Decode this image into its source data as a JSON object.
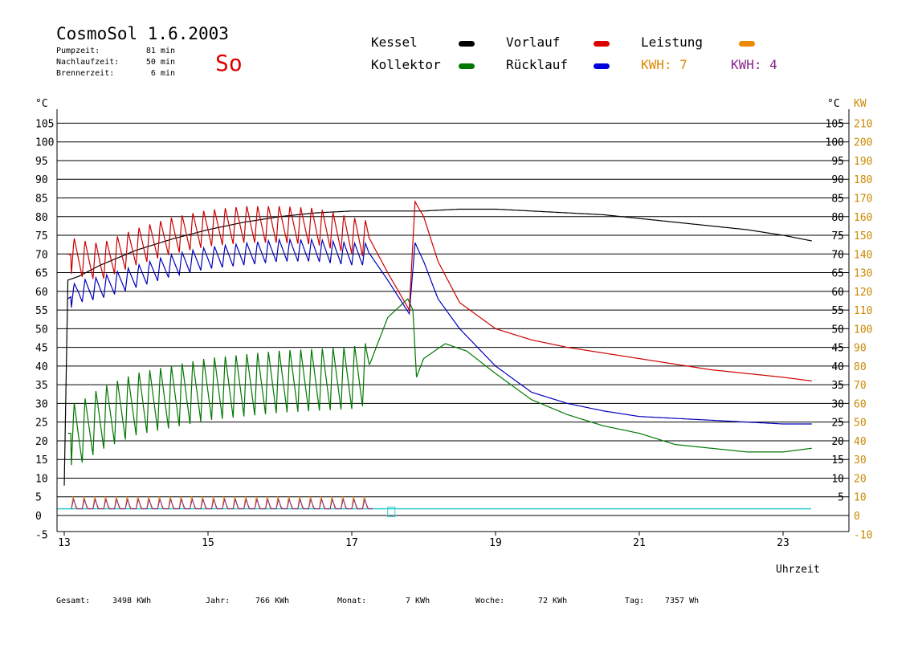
{
  "header": {
    "title": "CosmoSol 1.6.2003",
    "day": "So",
    "pumpzeit_label": "Pumpzeit:",
    "pumpzeit_value": "81 min",
    "nachlauf_label": "Nachlaufzeit:",
    "nachlauf_value": "50 min",
    "brenner_label": "Brennerzeit:",
    "brenner_value": "6 min"
  },
  "legend": {
    "kessel": "Kessel",
    "kollektor": "Kollektor",
    "vorlauf": "Vorlauf",
    "ruecklauf": "Rücklauf",
    "leistung": "Leistung",
    "kwh_orange": "KWH: 7",
    "kwh_purple": "KWH: 4"
  },
  "footer": {
    "gesamt_label": "Gesamt:",
    "gesamt_value": "3498 KWh",
    "jahr_label": "Jahr:",
    "jahr_value": "766 KWh",
    "monat_label": "Monat:",
    "monat_value": "7 KWh",
    "woche_label": "Woche:",
    "woche_value": "72 KWh",
    "tag_label": "Tag:",
    "tag_value": "7357 Wh"
  },
  "colors": {
    "kessel": "#000000",
    "kollektor": "#007700",
    "vorlauf": "#cc0000",
    "ruecklauf": "#0000bb",
    "leistung": "#ee8800",
    "kwh2": "#882288",
    "zero_line": "#33cccc",
    "axis_orange": "#cc8800"
  },
  "chart_data": {
    "type": "line",
    "title": "CosmoSol 1.6.2003",
    "xlabel": "Uhrzeit",
    "ylabel": "°C",
    "ylabel_right": "KW",
    "xlim": [
      12.9,
      23.9
    ],
    "ylim": [
      -5,
      108
    ],
    "y2lim": [
      -10,
      216
    ],
    "grid": true,
    "xticks": [
      13,
      15,
      17,
      19,
      21,
      23
    ],
    "yticks_left": [
      -5,
      0,
      5,
      10,
      15,
      20,
      25,
      30,
      35,
      40,
      45,
      50,
      55,
      60,
      65,
      70,
      75,
      80,
      85,
      90,
      95,
      100,
      105
    ],
    "yticks_right": [
      5,
      10,
      15,
      20,
      25,
      30,
      35,
      40,
      45,
      50,
      55,
      60,
      65,
      70,
      75,
      80,
      85,
      90,
      95,
      100,
      105
    ],
    "yticks_kw": [
      -10,
      0,
      10,
      20,
      30,
      40,
      50,
      60,
      70,
      80,
      90,
      100,
      110,
      120,
      130,
      140,
      150,
      160,
      170,
      180,
      190,
      200,
      210
    ],
    "series": [
      {
        "name": "Kessel",
        "color": "#000000",
        "x": [
          13.0,
          13.05,
          13.2,
          13.5,
          14.0,
          14.5,
          15.0,
          15.5,
          16.0,
          16.5,
          17.0,
          17.5,
          18.0,
          18.5,
          19.0,
          19.5,
          20.0,
          20.5,
          21.0,
          21.5,
          22.0,
          22.5,
          23.0,
          23.4
        ],
        "y": [
          8,
          63,
          64,
          67,
          71,
          74,
          76.5,
          78.5,
          80,
          81,
          81.5,
          81.5,
          81.5,
          82,
          82,
          81.5,
          81,
          80.5,
          79.5,
          78.5,
          77.5,
          76.5,
          75,
          73.5
        ]
      },
      {
        "name": "Vorlauf",
        "color": "#cc0000",
        "x": [
          13.05,
          13.2,
          13.5,
          14.0,
          14.5,
          15.0,
          15.5,
          16.0,
          16.5,
          17.0,
          17.25,
          17.5,
          17.8,
          17.88,
          18.0,
          18.2,
          18.5,
          19.0,
          19.5,
          20.0,
          20.5,
          21.0,
          21.5,
          22.0,
          22.5,
          23.0,
          23.4
        ],
        "y": [
          70,
          69,
          68,
          72,
          75,
          77,
          78,
          78,
          77.5,
          75,
          74,
          65,
          55,
          84,
          80,
          68,
          57,
          50,
          47,
          45,
          43.5,
          42,
          40.5,
          39,
          38,
          37,
          36
        ],
        "amplitude": 10
      },
      {
        "name": "Rücklauf",
        "color": "#0000bb",
        "x": [
          13.05,
          13.2,
          13.5,
          14.0,
          14.5,
          15.0,
          15.5,
          16.0,
          16.5,
          17.0,
          17.25,
          17.5,
          17.8,
          17.88,
          18.0,
          18.2,
          18.5,
          19.0,
          19.5,
          20.0,
          20.5,
          21.0,
          21.5,
          22.0,
          22.5,
          23.0,
          23.4
        ],
        "y": [
          58,
          60,
          61,
          64,
          67,
          69,
          70,
          71,
          71,
          70,
          70,
          63,
          54,
          73,
          68,
          58,
          50,
          40,
          33,
          30,
          28,
          26.5,
          26,
          25.5,
          25,
          24.5,
          24.5
        ],
        "amplitude": 6
      },
      {
        "name": "Kollektor",
        "color": "#007700",
        "x": [
          13.05,
          13.2,
          13.5,
          14.0,
          14.5,
          15.0,
          15.5,
          16.0,
          16.5,
          17.0,
          17.2,
          17.5,
          17.78,
          17.85,
          17.9,
          18.0,
          18.3,
          18.6,
          19.0,
          19.5,
          20.0,
          20.5,
          21.0,
          21.5,
          22.0,
          22.5,
          23.0,
          23.4
        ],
        "y": [
          22,
          22,
          26,
          30,
          32,
          34,
          35,
          36,
          36.5,
          37,
          38,
          53,
          58,
          55,
          37,
          42,
          46,
          44,
          38,
          31,
          27,
          24,
          22,
          19,
          18,
          17,
          17,
          18
        ],
        "amplitude": 17
      },
      {
        "name": "Leistung",
        "color": "#ee8800",
        "axis": "right"
      }
    ]
  },
  "axis_unit_left": "°C",
  "axis_unit_right": "°C",
  "axis_unit_kw": "KW"
}
